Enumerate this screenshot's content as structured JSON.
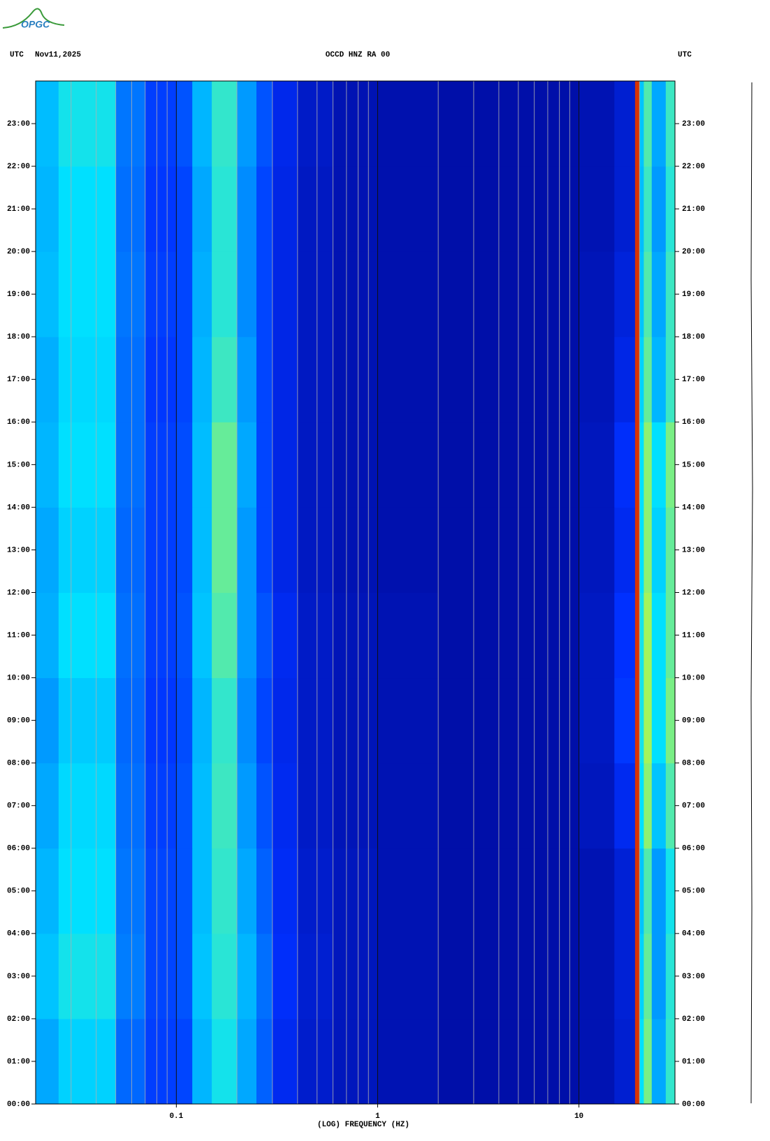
{
  "chart_data": {
    "type": "spectrogram",
    "logo": "OPGC",
    "y_label_left": "UTC",
    "date": "Nov11,2025",
    "title": "OCCD HNZ RA 00",
    "y_label_right": "UTC",
    "x_label": "(LOG) FREQUENCY (HZ)",
    "log_x": true,
    "xlim": [
      0.02,
      30
    ],
    "xticks": [
      0.1,
      1,
      10
    ],
    "xminor": [
      0.03,
      0.04,
      0.05,
      0.06,
      0.07,
      0.08,
      0.09,
      0.2,
      0.3,
      0.4,
      0.5,
      0.6,
      0.7,
      0.8,
      0.9,
      2,
      3,
      4,
      5,
      6,
      7,
      8,
      9,
      20
    ],
    "ylim": [
      0,
      24
    ],
    "yticks": [
      {
        "value": 0,
        "label": "00:00"
      },
      {
        "value": 1,
        "label": "01:00"
      },
      {
        "value": 2,
        "label": "02:00"
      },
      {
        "value": 3,
        "label": "03:00"
      },
      {
        "value": 4,
        "label": "04:00"
      },
      {
        "value": 5,
        "label": "05:00"
      },
      {
        "value": 6,
        "label": "06:00"
      },
      {
        "value": 7,
        "label": "07:00"
      },
      {
        "value": 8,
        "label": "08:00"
      },
      {
        "value": 9,
        "label": "09:00"
      },
      {
        "value": 10,
        "label": "10:00"
      },
      {
        "value": 11,
        "label": "11:00"
      },
      {
        "value": 12,
        "label": "12:00"
      },
      {
        "value": 13,
        "label": "13:00"
      },
      {
        "value": 14,
        "label": "14:00"
      },
      {
        "value": 15,
        "label": "15:00"
      },
      {
        "value": 16,
        "label": "16:00"
      },
      {
        "value": 17,
        "label": "17:00"
      },
      {
        "value": 18,
        "label": "18:00"
      },
      {
        "value": 19,
        "label": "19:00"
      },
      {
        "value": 20,
        "label": "20:00"
      },
      {
        "value": 21,
        "label": "21:00"
      },
      {
        "value": 22,
        "label": "22:00"
      },
      {
        "value": 23,
        "label": "23:00"
      }
    ],
    "colormap": [
      "#000080",
      "#0030ff",
      "#00e0ff",
      "#ffff00",
      "#d00000"
    ],
    "freq_edges": [
      0.02,
      0.026,
      0.05,
      0.07,
      0.1,
      0.12,
      0.15,
      0.2,
      0.25,
      0.3,
      0.4,
      0.6,
      1,
      2,
      5,
      10,
      15,
      19,
      20,
      21,
      23,
      27,
      30
    ],
    "time_edges": [
      0,
      2,
      4,
      6,
      8,
      10,
      12,
      14,
      16,
      18,
      20,
      22,
      24
    ],
    "z": [
      [
        0.42,
        0.48,
        0.33,
        0.27,
        0.28,
        0.44,
        0.52,
        0.42,
        0.32,
        0.22,
        0.15,
        0.12,
        0.1,
        0.08,
        0.08,
        0.1,
        0.16,
        0.95,
        0.5,
        0.62,
        0.42,
        0.55
      ],
      [
        0.46,
        0.52,
        0.36,
        0.28,
        0.3,
        0.46,
        0.54,
        0.44,
        0.34,
        0.24,
        0.16,
        0.12,
        0.1,
        0.08,
        0.08,
        0.1,
        0.17,
        0.95,
        0.48,
        0.6,
        0.4,
        0.54
      ],
      [
        0.44,
        0.5,
        0.35,
        0.28,
        0.3,
        0.45,
        0.55,
        0.42,
        0.32,
        0.23,
        0.15,
        0.12,
        0.1,
        0.08,
        0.08,
        0.1,
        0.17,
        0.95,
        0.46,
        0.58,
        0.4,
        0.52
      ],
      [
        0.42,
        0.49,
        0.34,
        0.27,
        0.3,
        0.45,
        0.56,
        0.4,
        0.3,
        0.22,
        0.14,
        0.11,
        0.1,
        0.08,
        0.08,
        0.12,
        0.22,
        0.95,
        0.5,
        0.64,
        0.46,
        0.58
      ],
      [
        0.4,
        0.47,
        0.33,
        0.26,
        0.29,
        0.44,
        0.55,
        0.38,
        0.28,
        0.21,
        0.14,
        0.11,
        0.1,
        0.08,
        0.08,
        0.13,
        0.26,
        0.95,
        0.52,
        0.66,
        0.5,
        0.62
      ],
      [
        0.43,
        0.5,
        0.34,
        0.27,
        0.3,
        0.46,
        0.58,
        0.4,
        0.3,
        0.22,
        0.14,
        0.11,
        0.1,
        0.08,
        0.08,
        0.13,
        0.25,
        0.95,
        0.52,
        0.66,
        0.5,
        0.6
      ],
      [
        0.42,
        0.48,
        0.33,
        0.27,
        0.29,
        0.45,
        0.6,
        0.4,
        0.28,
        0.2,
        0.13,
        0.1,
        0.09,
        0.08,
        0.08,
        0.12,
        0.22,
        0.95,
        0.5,
        0.64,
        0.48,
        0.6
      ],
      [
        0.44,
        0.5,
        0.34,
        0.27,
        0.29,
        0.45,
        0.6,
        0.42,
        0.28,
        0.2,
        0.13,
        0.1,
        0.09,
        0.08,
        0.08,
        0.12,
        0.24,
        0.95,
        0.5,
        0.64,
        0.5,
        0.62
      ],
      [
        0.43,
        0.49,
        0.34,
        0.26,
        0.28,
        0.44,
        0.56,
        0.4,
        0.28,
        0.2,
        0.13,
        0.1,
        0.09,
        0.08,
        0.08,
        0.11,
        0.2,
        0.95,
        0.48,
        0.6,
        0.44,
        0.56
      ],
      [
        0.45,
        0.5,
        0.35,
        0.27,
        0.28,
        0.43,
        0.54,
        0.38,
        0.28,
        0.2,
        0.13,
        0.1,
        0.09,
        0.08,
        0.08,
        0.11,
        0.18,
        0.95,
        0.46,
        0.58,
        0.42,
        0.56
      ],
      [
        0.44,
        0.5,
        0.34,
        0.26,
        0.28,
        0.42,
        0.54,
        0.38,
        0.28,
        0.2,
        0.13,
        0.1,
        0.09,
        0.08,
        0.08,
        0.1,
        0.16,
        0.95,
        0.45,
        0.56,
        0.4,
        0.54
      ],
      [
        0.45,
        0.52,
        0.35,
        0.27,
        0.3,
        0.44,
        0.55,
        0.4,
        0.3,
        0.21,
        0.14,
        0.1,
        0.09,
        0.08,
        0.08,
        0.1,
        0.16,
        0.95,
        0.46,
        0.58,
        0.42,
        0.56
      ]
    ]
  }
}
